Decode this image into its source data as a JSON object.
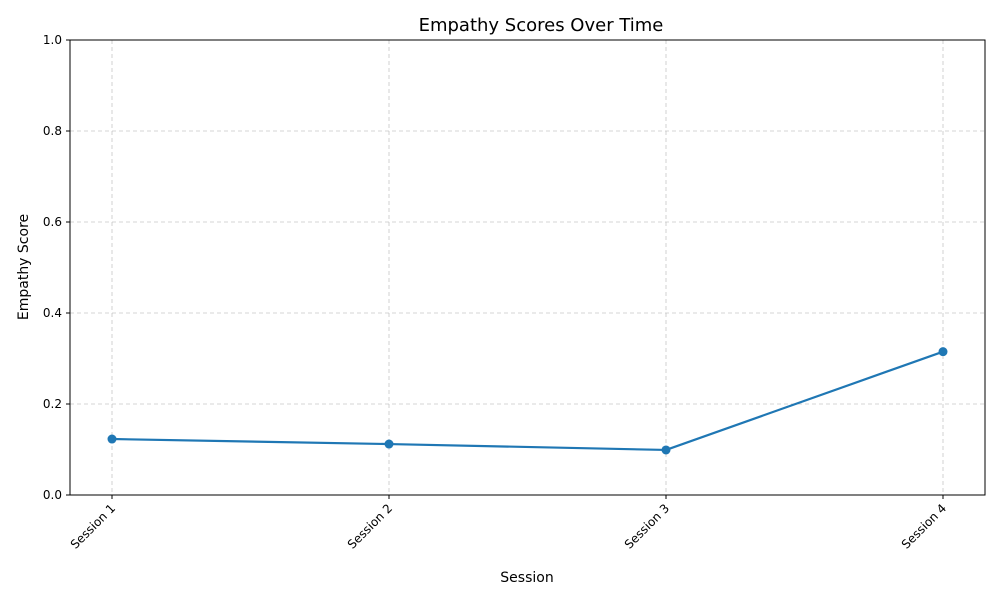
{
  "chart_data": {
    "type": "line",
    "title": "Empathy Scores Over Time",
    "xlabel": "Session",
    "ylabel": "Empathy Score",
    "categories": [
      "Session 1",
      "Session 2",
      "Session 3",
      "Session 4"
    ],
    "series": [
      {
        "values": [
          0.123,
          0.112,
          0.099,
          0.315
        ],
        "color": "#1f77b4",
        "marker": "circle"
      }
    ],
    "ylim": [
      0,
      1
    ],
    "yticks": [
      "0.0",
      "0.2",
      "0.4",
      "0.6",
      "0.8",
      "1.0"
    ],
    "grid": true,
    "legend": "none"
  }
}
